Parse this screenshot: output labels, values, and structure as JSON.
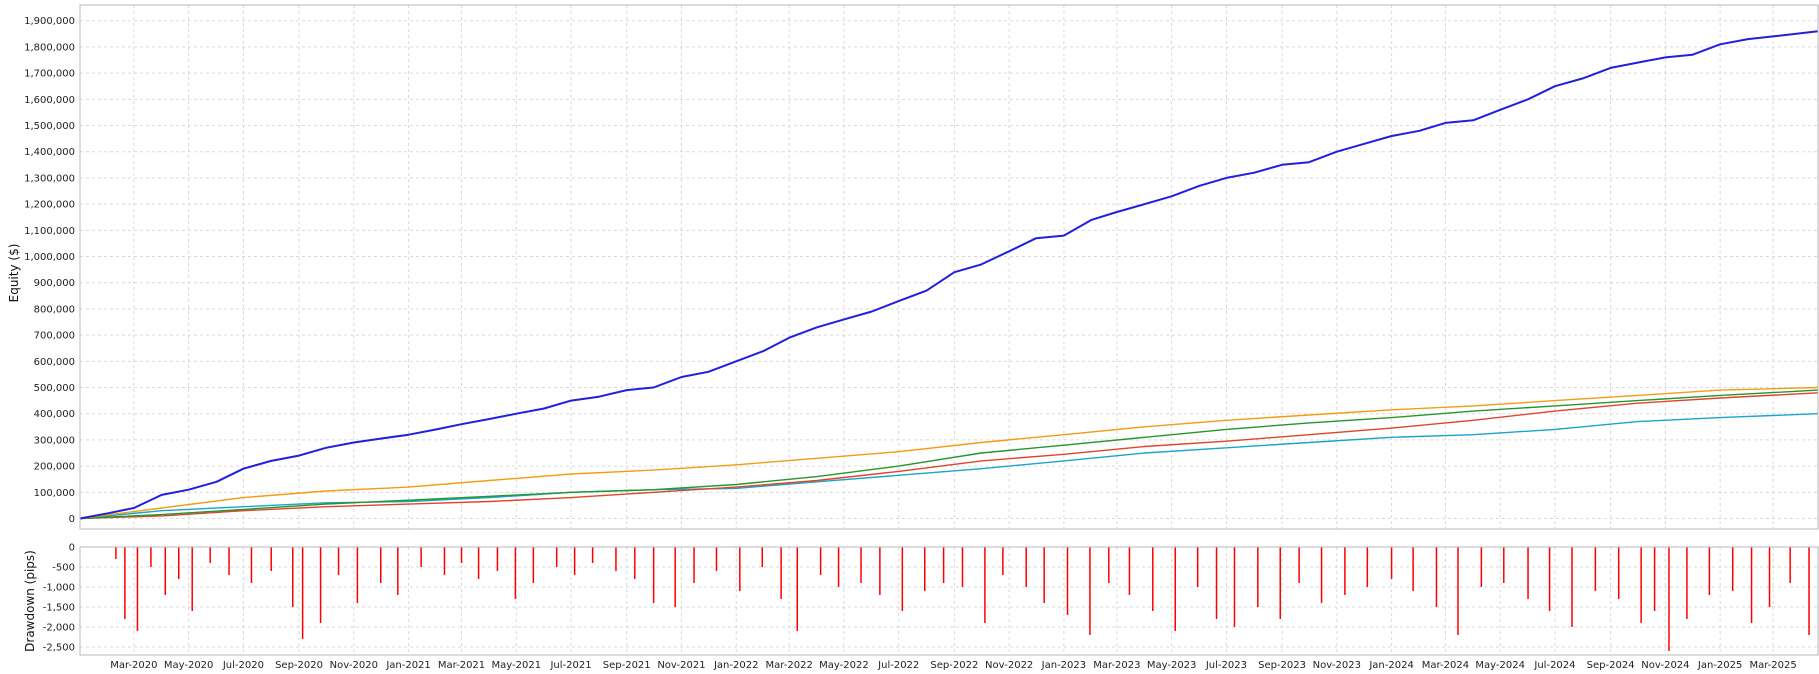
{
  "chart_data": [
    {
      "type": "line",
      "ylabel": "Equity ($)",
      "ylim": [
        -40000,
        1960000
      ],
      "yticks": [
        0,
        100000,
        200000,
        300000,
        400000,
        500000,
        600000,
        700000,
        800000,
        900000,
        1000000,
        1100000,
        1200000,
        1300000,
        1400000,
        1500000,
        1600000,
        1700000,
        1800000,
        1900000
      ],
      "ytick_labels": [
        "0",
        "100,000",
        "200,000",
        "300,000",
        "400,000",
        "500,000",
        "600,000",
        "700,000",
        "800,000",
        "900,000",
        "1,000,000",
        "1,100,000",
        "1,200,000",
        "1,300,000",
        "1,400,000",
        "1,500,000",
        "1,600,000",
        "1,700,000",
        "1,800,000",
        "1,900,000"
      ],
      "xlim": [
        "2020-01-01",
        "2025-04-20"
      ],
      "grid": true,
      "series": [
        {
          "color": "#1f1fe0",
          "x": [
            "2020-01-01",
            "2020-02-01",
            "2020-03-01",
            "2020-04-01",
            "2020-05-01",
            "2020-06-01",
            "2020-07-01",
            "2020-08-01",
            "2020-09-01",
            "2020-10-01",
            "2020-11-01",
            "2020-12-01",
            "2021-01-01",
            "2021-02-01",
            "2021-03-01",
            "2021-04-01",
            "2021-05-01",
            "2021-06-01",
            "2021-07-01",
            "2021-08-01",
            "2021-09-01",
            "2021-10-01",
            "2021-11-01",
            "2021-12-01",
            "2022-01-01",
            "2022-02-01",
            "2022-03-01",
            "2022-04-01",
            "2022-05-01",
            "2022-06-01",
            "2022-07-01",
            "2022-08-01",
            "2022-09-01",
            "2022-10-01",
            "2022-11-01",
            "2022-12-01",
            "2023-01-01",
            "2023-02-01",
            "2023-03-01",
            "2023-04-01",
            "2023-05-01",
            "2023-06-01",
            "2023-07-01",
            "2023-08-01",
            "2023-09-01",
            "2023-10-01",
            "2023-11-01",
            "2023-12-01",
            "2024-01-01",
            "2024-02-01",
            "2024-03-01",
            "2024-04-01",
            "2024-05-01",
            "2024-06-01",
            "2024-07-01",
            "2024-08-01",
            "2024-09-01",
            "2024-10-01",
            "2024-11-01",
            "2024-12-01",
            "2025-01-01",
            "2025-02-01",
            "2025-03-01",
            "2025-04-20"
          ],
          "values": [
            0,
            20000,
            40000,
            90000,
            110000,
            140000,
            190000,
            220000,
            240000,
            270000,
            290000,
            305000,
            320000,
            340000,
            360000,
            380000,
            400000,
            420000,
            450000,
            465000,
            490000,
            500000,
            540000,
            560000,
            600000,
            640000,
            690000,
            730000,
            760000,
            790000,
            830000,
            870000,
            940000,
            970000,
            1020000,
            1070000,
            1080000,
            1140000,
            1170000,
            1200000,
            1230000,
            1270000,
            1300000,
            1320000,
            1350000,
            1360000,
            1400000,
            1430000,
            1460000,
            1480000,
            1510000,
            1520000,
            1560000,
            1600000,
            1650000,
            1680000,
            1720000,
            1740000,
            1760000,
            1770000,
            1810000,
            1830000,
            1840000,
            1860000
          ]
        },
        {
          "color": "#f39c12",
          "x": [
            "2020-01-01",
            "2020-04-01",
            "2020-07-01",
            "2020-10-01",
            "2021-01-01",
            "2021-04-01",
            "2021-07-01",
            "2021-10-01",
            "2022-01-01",
            "2022-04-01",
            "2022-07-01",
            "2022-10-01",
            "2023-01-01",
            "2023-04-01",
            "2023-07-01",
            "2023-10-01",
            "2024-01-01",
            "2024-04-01",
            "2024-07-01",
            "2024-10-01",
            "2025-01-01",
            "2025-04-20"
          ],
          "values": [
            0,
            40000,
            80000,
            105000,
            120000,
            145000,
            170000,
            185000,
            205000,
            230000,
            255000,
            290000,
            320000,
            350000,
            375000,
            395000,
            415000,
            430000,
            450000,
            470000,
            490000,
            500000
          ]
        },
        {
          "color": "#27952b",
          "x": [
            "2020-01-01",
            "2020-04-01",
            "2020-07-01",
            "2020-10-01",
            "2021-01-01",
            "2021-04-01",
            "2021-07-01",
            "2021-10-01",
            "2022-01-01",
            "2022-04-01",
            "2022-07-01",
            "2022-10-01",
            "2023-01-01",
            "2023-04-01",
            "2023-07-01",
            "2023-10-01",
            "2024-01-01",
            "2024-04-01",
            "2024-07-01",
            "2024-10-01",
            "2025-01-01",
            "2025-04-20"
          ],
          "values": [
            0,
            15000,
            35000,
            55000,
            70000,
            85000,
            100000,
            110000,
            130000,
            160000,
            200000,
            250000,
            280000,
            310000,
            340000,
            365000,
            385000,
            410000,
            430000,
            450000,
            470000,
            490000
          ]
        },
        {
          "color": "#e0442c",
          "x": [
            "2020-01-01",
            "2020-04-01",
            "2020-07-01",
            "2020-10-01",
            "2021-01-01",
            "2021-04-01",
            "2021-07-01",
            "2021-10-01",
            "2022-01-01",
            "2022-04-01",
            "2022-07-01",
            "2022-10-01",
            "2023-01-01",
            "2023-04-01",
            "2023-07-01",
            "2023-10-01",
            "2024-01-01",
            "2024-04-01",
            "2024-07-01",
            "2024-10-01",
            "2025-01-01",
            "2025-04-20"
          ],
          "values": [
            0,
            10000,
            30000,
            45000,
            55000,
            65000,
            80000,
            100000,
            120000,
            145000,
            180000,
            220000,
            245000,
            275000,
            295000,
            320000,
            345000,
            375000,
            410000,
            440000,
            460000,
            480000
          ]
        },
        {
          "color": "#1aa4cc",
          "x": [
            "2020-01-01",
            "2020-04-01",
            "2020-07-01",
            "2020-10-01",
            "2021-01-01",
            "2021-04-01",
            "2021-07-01",
            "2021-10-01",
            "2022-01-01",
            "2022-04-01",
            "2022-07-01",
            "2022-10-01",
            "2023-01-01",
            "2023-04-01",
            "2023-07-01",
            "2023-10-01",
            "2024-01-01",
            "2024-04-01",
            "2024-07-01",
            "2024-10-01",
            "2025-01-01",
            "2025-04-20"
          ],
          "values": [
            0,
            30000,
            45000,
            60000,
            65000,
            80000,
            100000,
            110000,
            115000,
            140000,
            165000,
            190000,
            220000,
            250000,
            270000,
            290000,
            310000,
            320000,
            340000,
            370000,
            385000,
            400000
          ]
        }
      ]
    },
    {
      "type": "bar",
      "ylabel": "Drawdown (pips)",
      "ylim": [
        -2700,
        0
      ],
      "yticks": [
        0,
        -500,
        -1000,
        -1500,
        -2000,
        -2500
      ],
      "ytick_labels": [
        "0",
        "-500",
        "-1,000",
        "-1,500",
        "-2,000",
        "-2,500"
      ],
      "xlim": [
        "2020-01-01",
        "2025-04-20"
      ],
      "xtick_labels": [
        "Mar-2020",
        "May-2020",
        "Jul-2020",
        "Sep-2020",
        "Nov-2020",
        "Jan-2021",
        "Mar-2021",
        "May-2021",
        "Jul-2021",
        "Sep-2021",
        "Nov-2021",
        "Jan-2022",
        "Mar-2022",
        "May-2022",
        "Jul-2022",
        "Sep-2022",
        "Nov-2022",
        "Jan-2023",
        "Mar-2023",
        "May-2023",
        "Jul-2023",
        "Sep-2023",
        "Nov-2023",
        "Jan-2024",
        "Mar-2024",
        "May-2024",
        "Jul-2024",
        "Sep-2024",
        "Nov-2024",
        "Jan-2025",
        "Mar-2025"
      ],
      "xtick_dates": [
        "2020-03-01",
        "2020-05-01",
        "2020-07-01",
        "2020-09-01",
        "2020-11-01",
        "2021-01-01",
        "2021-03-01",
        "2021-05-01",
        "2021-07-01",
        "2021-09-01",
        "2021-11-01",
        "2022-01-01",
        "2022-03-01",
        "2022-05-01",
        "2022-07-01",
        "2022-09-01",
        "2022-11-01",
        "2023-01-01",
        "2023-03-01",
        "2023-05-01",
        "2023-07-01",
        "2023-09-01",
        "2023-11-01",
        "2024-01-01",
        "2024-03-01",
        "2024-05-01",
        "2024-07-01",
        "2024-09-01",
        "2024-11-01",
        "2025-01-01",
        "2025-03-01"
      ],
      "color": "#ff0000",
      "x": [
        "2020-02-10",
        "2020-02-20",
        "2020-03-05",
        "2020-03-20",
        "2020-04-05",
        "2020-04-20",
        "2020-05-05",
        "2020-05-25",
        "2020-06-15",
        "2020-07-10",
        "2020-08-01",
        "2020-08-25",
        "2020-09-05",
        "2020-09-25",
        "2020-10-15",
        "2020-11-05",
        "2020-12-01",
        "2020-12-20",
        "2021-01-15",
        "2021-02-10",
        "2021-03-01",
        "2021-03-20",
        "2021-04-10",
        "2021-04-30",
        "2021-05-20",
        "2021-06-15",
        "2021-07-05",
        "2021-07-25",
        "2021-08-20",
        "2021-09-10",
        "2021-10-01",
        "2021-10-25",
        "2021-11-15",
        "2021-12-10",
        "2022-01-05",
        "2022-01-30",
        "2022-02-20",
        "2022-03-10",
        "2022-04-05",
        "2022-04-25",
        "2022-05-20",
        "2022-06-10",
        "2022-07-05",
        "2022-07-30",
        "2022-08-20",
        "2022-09-10",
        "2022-10-05",
        "2022-10-25",
        "2022-11-20",
        "2022-12-10",
        "2023-01-05",
        "2023-01-30",
        "2023-02-20",
        "2023-03-15",
        "2023-04-10",
        "2023-05-05",
        "2023-05-30",
        "2023-06-20",
        "2023-07-10",
        "2023-08-05",
        "2023-08-30",
        "2023-09-20",
        "2023-10-15",
        "2023-11-10",
        "2023-12-05",
        "2024-01-01",
        "2024-01-25",
        "2024-02-20",
        "2024-03-15",
        "2024-04-10",
        "2024-05-05",
        "2024-06-01",
        "2024-06-25",
        "2024-07-20",
        "2024-08-15",
        "2024-09-10",
        "2024-10-05",
        "2024-10-20",
        "2024-11-05",
        "2024-11-25",
        "2024-12-20",
        "2025-01-15",
        "2025-02-05",
        "2025-02-25",
        "2025-03-20",
        "2025-04-10"
      ],
      "values": [
        -300,
        -1800,
        -2100,
        -500,
        -1200,
        -800,
        -1600,
        -400,
        -700,
        -900,
        -600,
        -1500,
        -2300,
        -1900,
        -700,
        -1400,
        -900,
        -1200,
        -500,
        -700,
        -400,
        -800,
        -600,
        -1300,
        -900,
        -500,
        -700,
        -400,
        -600,
        -800,
        -1400,
        -1500,
        -900,
        -600,
        -1100,
        -500,
        -1300,
        -2100,
        -700,
        -1000,
        -900,
        -1200,
        -1600,
        -1100,
        -900,
        -1000,
        -1900,
        -700,
        -1000,
        -1400,
        -1700,
        -2200,
        -900,
        -1200,
        -1600,
        -2100,
        -1000,
        -1800,
        -2000,
        -1500,
        -1800,
        -900,
        -1400,
        -1200,
        -1000,
        -800,
        -1100,
        -1500,
        -2200,
        -1000,
        -900,
        -1300,
        -1600,
        -2000,
        -1100,
        -1300,
        -1900,
        -1600,
        -2600,
        -1800,
        -1200,
        -1100,
        -1900,
        -1500,
        -900,
        -2200
      ]
    }
  ]
}
